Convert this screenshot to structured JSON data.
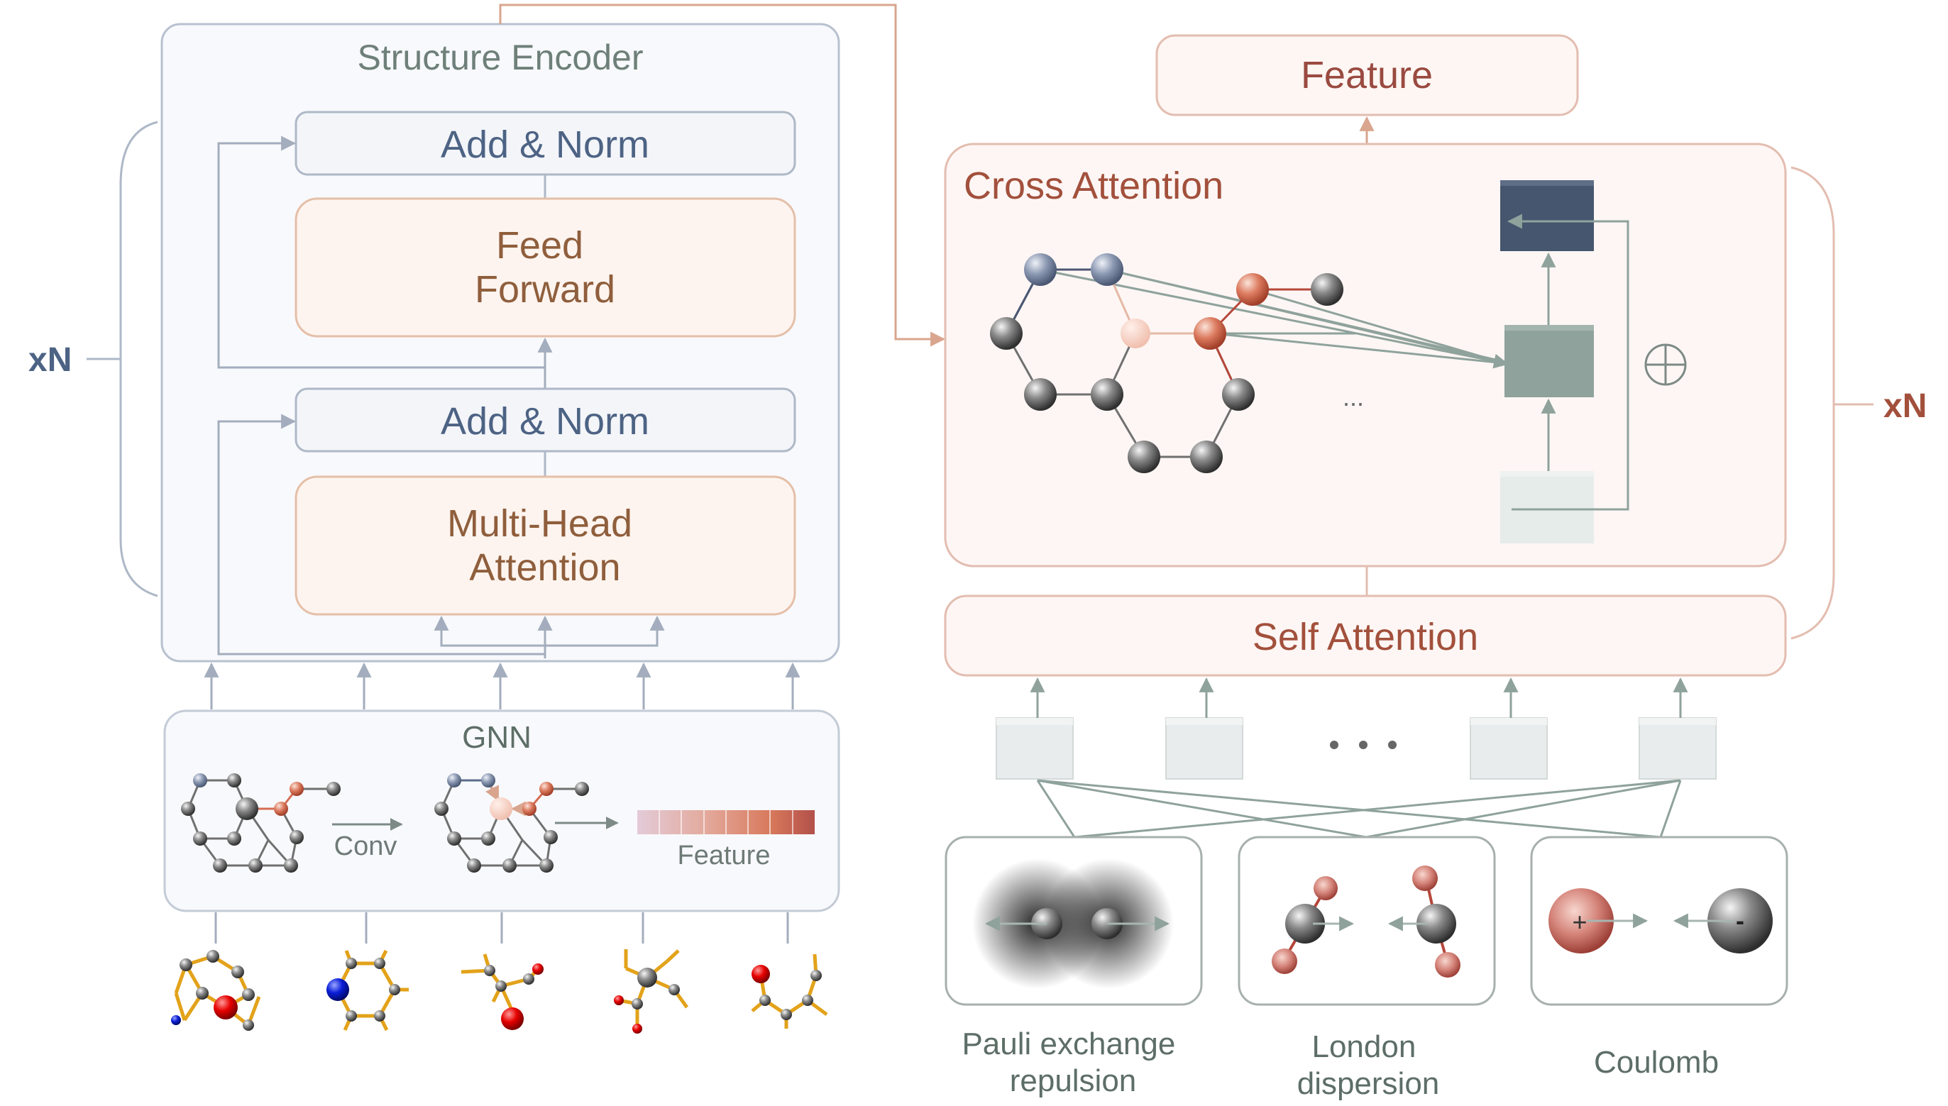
{
  "encoder": {
    "title": "Structure Encoder",
    "add_norm_top": "Add & Norm",
    "feed_forward": [
      "Feed",
      "Forward"
    ],
    "add_norm_bottom": "Add & Norm",
    "mha": [
      "Multi-Head",
      "Attention"
    ],
    "repeat_label": "xN"
  },
  "gnn": {
    "title": "GNN",
    "conv_label": "Conv",
    "feature_label": "Feature",
    "feature_gradient": [
      "#e2c9d4",
      "#e4a99c",
      "#d97b5e",
      "#b5514a"
    ]
  },
  "decoder": {
    "feature": "Feature",
    "cross_attention": "Cross Attention",
    "self_attention": "Self Attention",
    "repeat_label": "xN",
    "ellipsis_small": "...",
    "plus_symbol": "⊕"
  },
  "interactions": [
    {
      "label": [
        "Pauli exchange",
        "repulsion"
      ]
    },
    {
      "label": [
        "London",
        "dispersion"
      ]
    },
    {
      "label": [
        "Coulomb"
      ]
    }
  ],
  "charges": {
    "positive": "+",
    "negative": "-"
  },
  "colors": {
    "gray_stroke": "#a9b4c4",
    "brown_stroke": "#e3b7a0",
    "node_blue": "#8593ac",
    "node_red": "#d56c52",
    "arrow_green": "#8fa29c",
    "dark_block": "#45566e",
    "mid_block": "#8fa29c"
  }
}
